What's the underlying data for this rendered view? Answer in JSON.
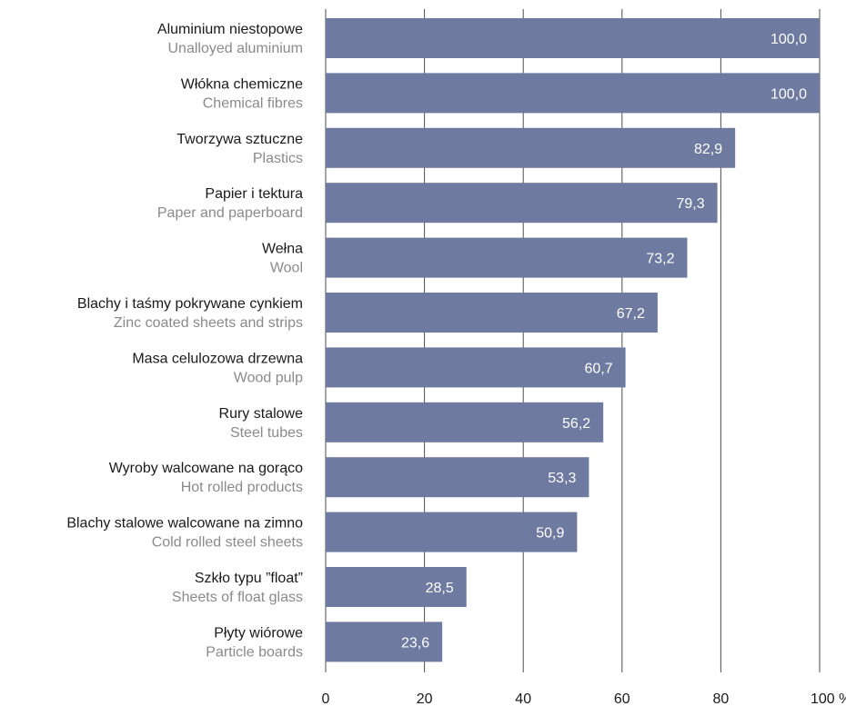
{
  "chart_data": {
    "type": "bar",
    "orientation": "horizontal",
    "categories": [
      {
        "pl": "Aluminium niestopowe",
        "en": "Unalloyed aluminium"
      },
      {
        "pl": "Włókna chemiczne",
        "en": "Chemical fibres"
      },
      {
        "pl": "Tworzywa sztuczne",
        "en": "Plastics"
      },
      {
        "pl": "Papier i tektura",
        "en": "Paper and paperboard"
      },
      {
        "pl": "Wełna",
        "en": "Wool"
      },
      {
        "pl": "Blachy i taśmy pokrywane cynkiem",
        "en": "Zinc coated sheets and strips"
      },
      {
        "pl": "Masa celulozowa drzewna",
        "en": "Wood pulp"
      },
      {
        "pl": "Rury stalowe",
        "en": "Steel tubes"
      },
      {
        "pl": "Wyroby walcowane na gorąco",
        "en": "Hot rolled products"
      },
      {
        "pl": "Blachy stalowe walcowane na zimno",
        "en": "Cold rolled steel sheets"
      },
      {
        "pl": "Szkło typu ”float”",
        "en": "Sheets of float glass"
      },
      {
        "pl": "Płyty wiórowe",
        "en": "Particle boards"
      }
    ],
    "values": [
      100.0,
      100.0,
      82.9,
      79.3,
      73.2,
      67.2,
      60.7,
      56.2,
      53.3,
      50.9,
      28.5,
      23.6
    ],
    "value_labels": [
      "100,0",
      "100,0",
      "82,9",
      "79,3",
      "73,2",
      "67,2",
      "60,7",
      "56,2",
      "53,3",
      "50,9",
      "28,5",
      "23,6"
    ],
    "x_ticks": [
      0,
      20,
      40,
      60,
      80,
      100
    ],
    "x_tick_labels": [
      "0",
      "20",
      "40",
      "60",
      "80",
      "100 %"
    ],
    "xlim": [
      0,
      100
    ],
    "grid": true,
    "bar_color": "#6e7aa0",
    "grid_color": "#4d4d4d"
  }
}
